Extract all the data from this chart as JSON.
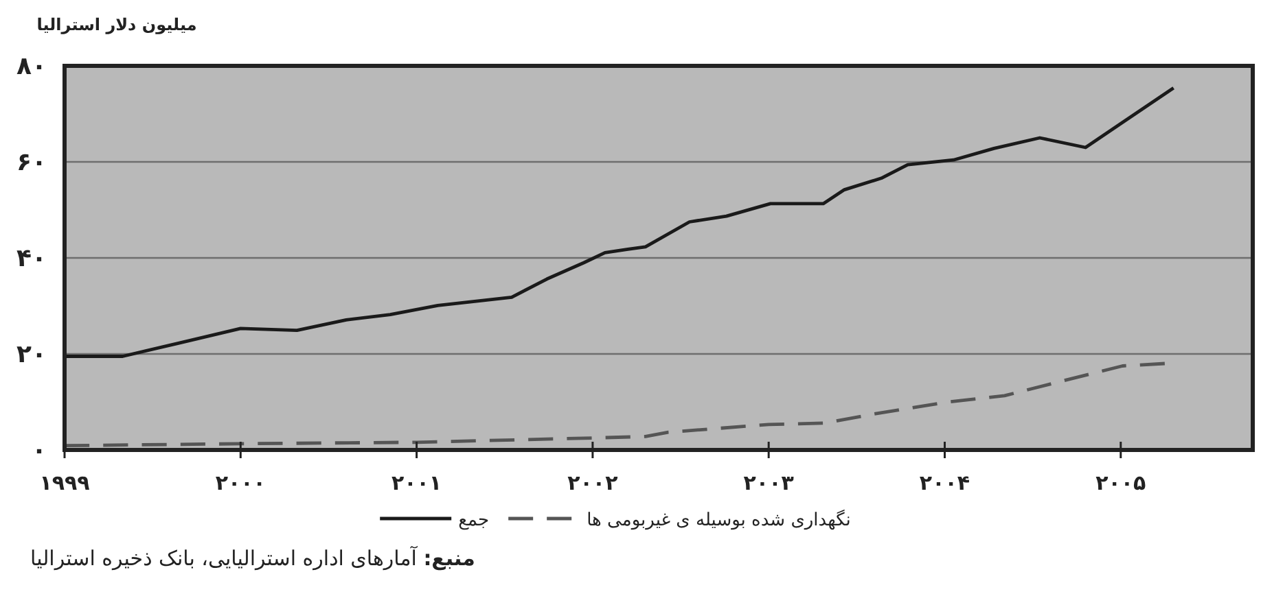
{
  "chart_data": {
    "type": "line",
    "ylabel": "میلیون دلار استرالیا",
    "xlim": [
      1999,
      2005.75
    ],
    "ylim": [
      0,
      80
    ],
    "xticks": [
      {
        "value": 1999,
        "label": "۱۹۹۹"
      },
      {
        "value": 2000,
        "label": "۲۰۰۰"
      },
      {
        "value": 2001,
        "label": "۲۰۰۱"
      },
      {
        "value": 2002,
        "label": "۲۰۰۲"
      },
      {
        "value": 2003,
        "label": "۲۰۰۳"
      },
      {
        "value": 2004,
        "label": "۲۰۰۴"
      },
      {
        "value": 2005,
        "label": "۲۰۰۵"
      }
    ],
    "yticks": [
      {
        "value": 0,
        "label": "۰"
      },
      {
        "value": 20,
        "label": "۲۰"
      },
      {
        "value": 40,
        "label": "۴۰"
      },
      {
        "value": 60,
        "label": "۶۰"
      },
      {
        "value": 80,
        "label": "۸۰"
      }
    ],
    "grid": "y",
    "legend": "bottom",
    "series": [
      {
        "name": "جمع",
        "color": "#1a1a1a",
        "line_style": "solid",
        "x": [
          1999.0,
          1999.33,
          2000.0,
          2000.32,
          2000.6,
          2000.85,
          2001.12,
          2001.54,
          2001.74,
          2001.95,
          2002.07,
          2002.2,
          2002.3,
          2002.55,
          2002.76,
          2003.01,
          2003.31,
          2003.43,
          2003.64,
          2003.79,
          2004.05,
          2004.28,
          2004.54,
          2004.8,
          2005.01,
          2005.3
        ],
        "values": [
          19.5,
          19.5,
          25.3,
          24.9,
          27.1,
          28.2,
          30.1,
          31.8,
          35.6,
          39,
          41.1,
          41.8,
          42.3,
          47.5,
          48.7,
          51.3,
          51.3,
          54.2,
          56.6,
          59.4,
          60.4,
          62.8,
          65,
          63,
          68.2,
          75.4
        ]
      },
      {
        "name": "نگهداری شده بوسیله ی غیربومی ها",
        "color": "#555555",
        "line_style": "dashed",
        "x": [
          1999.0,
          2000.0,
          2001.0,
          2002.0,
          2002.3,
          2002.43,
          2003.0,
          2003.32,
          2003.6,
          2004.0,
          2004.34,
          2004.65,
          2005.01,
          2005.25
        ],
        "values": [
          0.9,
          1.3,
          1.6,
          2.5,
          2.8,
          3.7,
          5.3,
          5.6,
          7.5,
          9.9,
          11.3,
          14.2,
          17.5,
          18
        ]
      }
    ],
    "annotations": [
      "**منبع:** آمارهای اداره استرالیایی، بانک ذخیره استرالیا"
    ]
  }
}
